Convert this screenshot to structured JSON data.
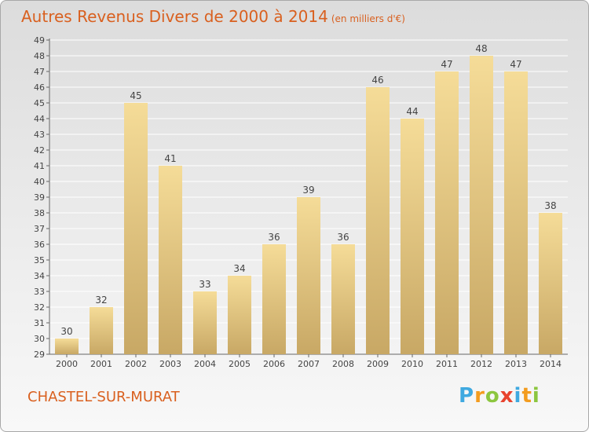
{
  "chart_data": {
    "type": "bar",
    "title": "Autres Revenus Divers de 2000 à 2014",
    "subtitle": "(en milliers d'€)",
    "categories": [
      "2000",
      "2001",
      "2002",
      "2003",
      "2004",
      "2005",
      "2006",
      "2007",
      "2008",
      "2009",
      "2010",
      "2011",
      "2012",
      "2013",
      "2014"
    ],
    "values": [
      30,
      32,
      45,
      41,
      33,
      34,
      36,
      39,
      36,
      46,
      44,
      47,
      48,
      47,
      38
    ],
    "ylim": [
      29,
      49
    ],
    "yticks": [
      29,
      30,
      31,
      32,
      33,
      34,
      35,
      36,
      37,
      38,
      39,
      40,
      41,
      42,
      43,
      44,
      45,
      46,
      47,
      48,
      49
    ],
    "grid": true,
    "colors": {
      "bar_light": "#f5dc98",
      "bar_dark": "#c8a865",
      "grid": "#ffffff"
    }
  },
  "footer": {
    "city": "CHASTEL-SUR-MURAT",
    "logo": [
      "P",
      "r",
      "o",
      "x",
      "i",
      "t",
      "i"
    ],
    "logo_colors": [
      "#3fa9e0",
      "#f39c1f",
      "#8cc63f",
      "#e8432e",
      "#3fa9e0",
      "#f39c1f",
      "#8cc63f"
    ]
  }
}
